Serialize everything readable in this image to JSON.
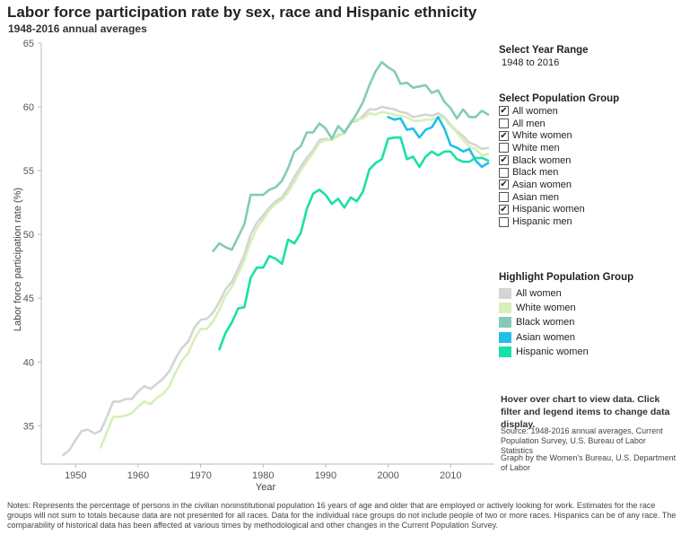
{
  "title": "Labor force participation rate by sex, race and Hispanic ethnicity",
  "subtitle": "1948-2016 annual averages",
  "year_range": {
    "heading": "Select Year Range",
    "value": "1948 to 2016"
  },
  "population_filter": {
    "heading": "Select Population Group",
    "items": [
      {
        "label": "All women",
        "checked": true
      },
      {
        "label": "All men",
        "checked": false
      },
      {
        "label": "White women",
        "checked": true
      },
      {
        "label": "White men",
        "checked": false
      },
      {
        "label": "Black women",
        "checked": true
      },
      {
        "label": "Black men",
        "checked": false
      },
      {
        "label": "Asian women",
        "checked": true
      },
      {
        "label": "Asian men",
        "checked": false
      },
      {
        "label": "Hispanic women",
        "checked": true
      },
      {
        "label": "Hispanic men",
        "checked": false
      }
    ]
  },
  "highlight_legend": {
    "heading": "Highlight Population Group",
    "items": [
      {
        "label": "All women",
        "color": "#d4d4d4"
      },
      {
        "label": "White women",
        "color": "#d6f0b8"
      },
      {
        "label": "Black women",
        "color": "#84cbb5"
      },
      {
        "label": "Asian women",
        "color": "#1fbfe8"
      },
      {
        "label": "Hispanic women",
        "color": "#19e0a8"
      }
    ]
  },
  "hover_note": "Hover over chart to view data. Click filter and legend items to change data display.",
  "source_note": "Source: 1948-2016 annual averages, Current Population Survey, U.S. Bureau of Labor Statistics",
  "graph_by": "Graph by the Women's Bureau, U.S. Department of Labor",
  "notes": "Notes: Represents the percentage of persons in the civilian noninstitutional population 16 years of age and older that are employed or actively looking for work. Estimates for the race groups will not sum to totals because data are not presented for all races. Data for the individual race groups do not include people of two or more races. Hispanics can be of any race. The comparability of historical data has been affected at various times by methodological and other changes in the Current Population Survey.",
  "chart_data": {
    "type": "line",
    "xlabel": "Year",
    "ylabel": "Labor force participation rate (%)",
    "xlim": [
      1944.5,
      2017
    ],
    "ylim": [
      32,
      65
    ],
    "x_ticks": [
      1950,
      1960,
      1970,
      1980,
      1990,
      2000,
      2010
    ],
    "y_ticks": [
      35,
      40,
      45,
      50,
      55,
      60,
      65
    ],
    "grid": false,
    "series": [
      {
        "name": "All women",
        "color": "#d4d4d4",
        "x": [
          1948,
          1949,
          1950,
          1951,
          1952,
          1953,
          1954,
          1955,
          1956,
          1957,
          1958,
          1959,
          1960,
          1961,
          1962,
          1963,
          1964,
          1965,
          1966,
          1967,
          1968,
          1969,
          1970,
          1971,
          1972,
          1973,
          1974,
          1975,
          1976,
          1977,
          1978,
          1979,
          1980,
          1981,
          1982,
          1983,
          1984,
          1985,
          1986,
          1987,
          1988,
          1989,
          1990,
          1991,
          1992,
          1993,
          1994,
          1995,
          1996,
          1997,
          1998,
          1999,
          2000,
          2001,
          2002,
          2003,
          2004,
          2005,
          2006,
          2007,
          2008,
          2009,
          2010,
          2011,
          2012,
          2013,
          2014,
          2015,
          2016
        ],
        "y": [
          32.7,
          33.1,
          33.9,
          34.6,
          34.7,
          34.4,
          34.6,
          35.7,
          36.9,
          36.9,
          37.1,
          37.1,
          37.7,
          38.1,
          37.9,
          38.3,
          38.7,
          39.3,
          40.3,
          41.1,
          41.6,
          42.7,
          43.3,
          43.4,
          43.9,
          44.7,
          45.7,
          46.3,
          47.3,
          48.4,
          50.0,
          50.9,
          51.5,
          52.1,
          52.6,
          52.9,
          53.6,
          54.5,
          55.3,
          56.0,
          56.6,
          57.4,
          57.5,
          57.4,
          57.8,
          57.9,
          58.8,
          58.9,
          59.3,
          59.8,
          59.8,
          60.0,
          59.9,
          59.8,
          59.6,
          59.5,
          59.2,
          59.3,
          59.4,
          59.3,
          59.5,
          59.2,
          58.6,
          58.1,
          57.7,
          57.2,
          57.0,
          56.7,
          56.8
        ]
      },
      {
        "name": "White women",
        "color": "#d6f0b8",
        "x": [
          1954,
          1955,
          1956,
          1957,
          1958,
          1959,
          1960,
          1961,
          1962,
          1963,
          1964,
          1965,
          1966,
          1967,
          1968,
          1969,
          1970,
          1971,
          1972,
          1973,
          1974,
          1975,
          1976,
          1977,
          1978,
          1979,
          1980,
          1981,
          1982,
          1983,
          1984,
          1985,
          1986,
          1987,
          1988,
          1989,
          1990,
          1991,
          1992,
          1993,
          1994,
          1995,
          1996,
          1997,
          1998,
          1999,
          2000,
          2001,
          2002,
          2003,
          2004,
          2005,
          2006,
          2007,
          2008,
          2009,
          2010,
          2011,
          2012,
          2013,
          2014,
          2015,
          2016
        ],
        "y": [
          33.3,
          34.5,
          35.7,
          35.7,
          35.8,
          36.0,
          36.5,
          36.9,
          36.7,
          37.2,
          37.5,
          38.1,
          39.2,
          40.1,
          40.7,
          41.8,
          42.6,
          42.6,
          43.2,
          44.1,
          45.2,
          45.9,
          46.9,
          48.0,
          49.4,
          50.5,
          51.2,
          51.9,
          52.4,
          52.7,
          53.3,
          54.1,
          55.0,
          55.7,
          56.4,
          57.2,
          57.4,
          57.4,
          57.7,
          58.0,
          58.9,
          59.0,
          59.1,
          59.5,
          59.4,
          59.6,
          59.5,
          59.4,
          59.3,
          59.2,
          58.9,
          58.9,
          59.0,
          59.0,
          59.2,
          59.1,
          58.5,
          58.0,
          57.4,
          56.9,
          56.7,
          56.2,
          56.3
        ]
      },
      {
        "name": "Black women",
        "color": "#84cbb5",
        "x": [
          1972,
          1973,
          1974,
          1975,
          1976,
          1977,
          1978,
          1979,
          1980,
          1981,
          1982,
          1983,
          1984,
          1985,
          1986,
          1987,
          1988,
          1989,
          1990,
          1991,
          1992,
          1993,
          1994,
          1995,
          1996,
          1997,
          1998,
          1999,
          2000,
          2001,
          2002,
          2003,
          2004,
          2005,
          2006,
          2007,
          2008,
          2009,
          2010,
          2011,
          2012,
          2013,
          2014,
          2015,
          2016
        ],
        "y": [
          48.7,
          49.3,
          49.0,
          48.8,
          49.8,
          50.8,
          53.1,
          53.1,
          53.1,
          53.5,
          53.7,
          54.2,
          55.2,
          56.5,
          56.9,
          58.0,
          58.0,
          58.7,
          58.3,
          57.5,
          58.5,
          58.0,
          58.7,
          59.5,
          60.4,
          61.7,
          62.8,
          63.5,
          63.1,
          62.8,
          61.8,
          61.9,
          61.5,
          61.6,
          61.7,
          61.1,
          61.3,
          60.4,
          59.9,
          59.1,
          59.8,
          59.2,
          59.2,
          59.7,
          59.4
        ]
      },
      {
        "name": "Asian women",
        "color": "#1fbfe8",
        "x": [
          2000,
          2001,
          2002,
          2003,
          2004,
          2005,
          2006,
          2007,
          2008,
          2009,
          2010,
          2011,
          2012,
          2013,
          2014,
          2015,
          2016
        ],
        "y": [
          59.2,
          59.0,
          59.1,
          58.2,
          58.3,
          57.6,
          58.2,
          58.4,
          59.2,
          58.3,
          57.0,
          56.8,
          56.5,
          56.7,
          55.8,
          55.3,
          55.6
        ]
      },
      {
        "name": "Hispanic women",
        "color": "#19e0a8",
        "x": [
          1973,
          1974,
          1975,
          1976,
          1977,
          1978,
          1979,
          1980,
          1981,
          1982,
          1983,
          1984,
          1985,
          1986,
          1987,
          1988,
          1989,
          1990,
          1991,
          1992,
          1993,
          1994,
          1995,
          1996,
          1997,
          1998,
          1999,
          2000,
          2001,
          2002,
          2003,
          2004,
          2005,
          2006,
          2007,
          2008,
          2009,
          2010,
          2011,
          2012,
          2013,
          2014,
          2015,
          2016
        ],
        "y": [
          41.0,
          42.3,
          43.1,
          44.2,
          44.3,
          46.6,
          47.4,
          47.4,
          48.3,
          48.1,
          47.7,
          49.6,
          49.3,
          50.1,
          52.0,
          53.2,
          53.5,
          53.1,
          52.4,
          52.8,
          52.1,
          52.9,
          52.6,
          53.4,
          55.1,
          55.6,
          55.9,
          57.5,
          57.6,
          57.6,
          55.9,
          56.1,
          55.3,
          56.1,
          56.5,
          56.2,
          56.5,
          56.5,
          55.9,
          55.7,
          55.7,
          56.0,
          56.0,
          55.8
        ]
      }
    ]
  }
}
